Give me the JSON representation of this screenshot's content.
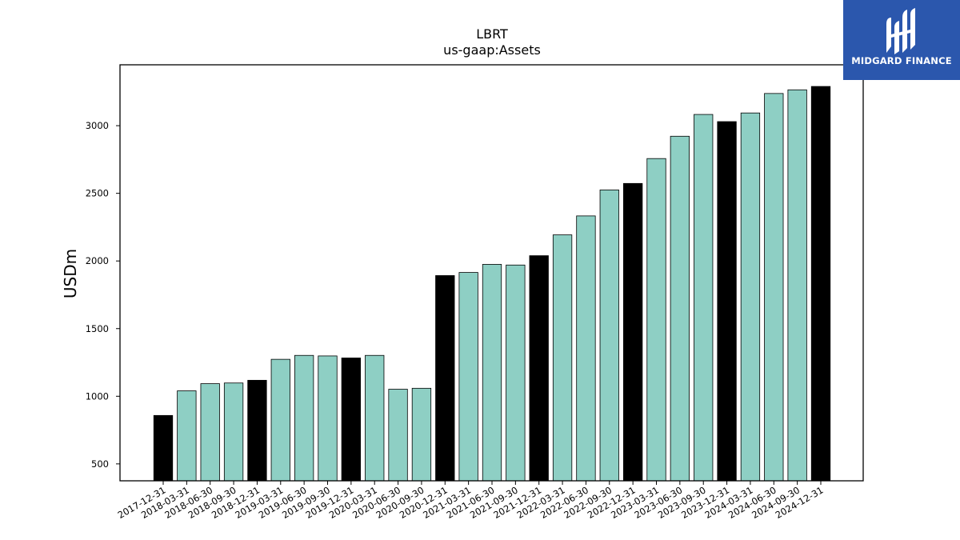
{
  "brand": {
    "name": "MIDGARD FINANCE",
    "color": "#2b57ad"
  },
  "chart_data": {
    "type": "bar",
    "title": "LBRT",
    "subtitle": "us-gaap:Assets",
    "xlabel": "",
    "ylabel": "USDm",
    "ylim": [
      375,
      3450
    ],
    "yticks": [
      500,
      1000,
      1500,
      2000,
      2500,
      3000
    ],
    "grid": false,
    "colors": {
      "quarter": "#8ecfc4",
      "year_end": "#000000"
    },
    "categories": [
      "2017-12-31",
      "2018-03-31",
      "2018-06-30",
      "2018-09-30",
      "2018-12-31",
      "2019-03-31",
      "2019-06-30",
      "2019-09-30",
      "2019-12-31",
      "2020-03-31",
      "2020-06-30",
      "2020-09-30",
      "2020-12-31",
      "2021-03-31",
      "2021-06-30",
      "2021-09-30",
      "2021-12-31",
      "2022-03-31",
      "2022-06-30",
      "2022-09-30",
      "2022-12-31",
      "2023-03-31",
      "2023-06-30",
      "2023-09-30",
      "2023-12-31",
      "2024-03-31",
      "2024-06-30",
      "2024-09-30",
      "2024-12-31"
    ],
    "values": [
      858,
      1040,
      1093,
      1098,
      1118,
      1273,
      1302,
      1298,
      1283,
      1302,
      1052,
      1059,
      1892,
      1915,
      1975,
      1970,
      2039,
      2193,
      2333,
      2525,
      2573,
      2757,
      2922,
      3083,
      3030,
      3094,
      3238,
      3265,
      3290
    ],
    "year_end": [
      true,
      false,
      false,
      false,
      true,
      false,
      false,
      false,
      true,
      false,
      false,
      false,
      true,
      false,
      false,
      false,
      true,
      false,
      false,
      false,
      true,
      false,
      false,
      false,
      true,
      false,
      false,
      false,
      true
    ]
  }
}
